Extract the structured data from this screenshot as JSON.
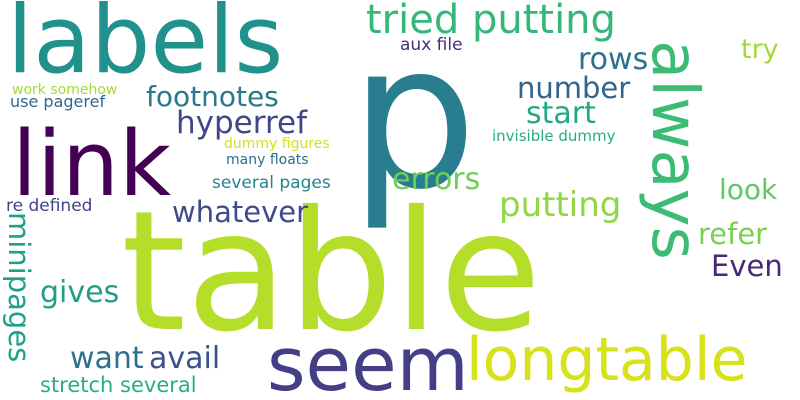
{
  "words": [
    {
      "text": "table",
      "color": "#b5de2b",
      "vertical": false
    },
    {
      "text": "p",
      "color": "#287d8e",
      "vertical": false
    },
    {
      "text": "labels",
      "color": "#21918c",
      "vertical": false
    },
    {
      "text": "link",
      "color": "#440154",
      "vertical": false
    },
    {
      "text": "seem",
      "color": "#433e85",
      "vertical": false
    },
    {
      "text": "longtable",
      "color": "#d8e219",
      "vertical": false
    },
    {
      "text": "always",
      "color": "#3cbb75",
      "vertical": true
    },
    {
      "text": "tried putting",
      "color": "#35b779",
      "vertical": false
    },
    {
      "text": "errors",
      "color": "#6ece58",
      "vertical": false
    },
    {
      "text": "putting",
      "color": "#90d743",
      "vertical": false
    },
    {
      "text": "whatever",
      "color": "#3e4a89",
      "vertical": false
    },
    {
      "text": "hyperref",
      "color": "#404688",
      "vertical": false
    },
    {
      "text": "footnotes",
      "color": "#2a788e",
      "vertical": false
    },
    {
      "text": "number",
      "color": "#33638d",
      "vertical": false
    },
    {
      "text": "start",
      "color": "#22a884",
      "vertical": false
    },
    {
      "text": "rows",
      "color": "#2c728e",
      "vertical": false
    },
    {
      "text": "try",
      "color": "#a0da39",
      "vertical": false
    },
    {
      "text": "look",
      "color": "#5ec962",
      "vertical": false
    },
    {
      "text": "refer",
      "color": "#7ad151",
      "vertical": false
    },
    {
      "text": "Even",
      "color": "#482878",
      "vertical": false
    },
    {
      "text": "minipages",
      "color": "#1fa187",
      "vertical": true
    },
    {
      "text": "gives",
      "color": "#1f9e89",
      "vertical": false
    },
    {
      "text": "want",
      "color": "#2d708e",
      "vertical": false
    },
    {
      "text": "avail",
      "color": "#3b528b",
      "vertical": false
    },
    {
      "text": "stretch several",
      "color": "#29af7f",
      "vertical": false
    },
    {
      "text": "aux file",
      "color": "#472d7b",
      "vertical": false
    },
    {
      "text": "work somehow",
      "color": "#a5db36",
      "vertical": false
    },
    {
      "text": "use pageref",
      "color": "#31688e",
      "vertical": false
    },
    {
      "text": "invisible dummy",
      "color": "#27ad81",
      "vertical": false
    },
    {
      "text": "dummy figures",
      "color": "#d2e21b",
      "vertical": false
    },
    {
      "text": "many floats",
      "color": "#2e6f8e",
      "vertical": false
    },
    {
      "text": "several pages",
      "color": "#25848e",
      "vertical": false
    },
    {
      "text": "re defined",
      "color": "#414487",
      "vertical": false
    }
  ]
}
